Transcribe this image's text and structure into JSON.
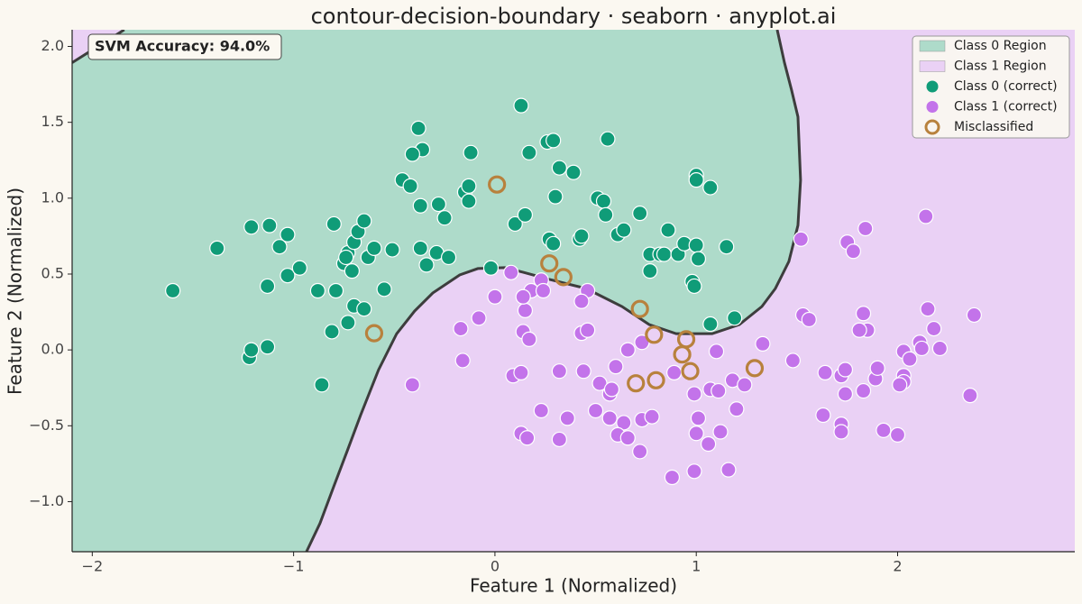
{
  "chart_data": {
    "type": "scatter",
    "title": "contour-decision-boundary · seaborn · anyplot.ai",
    "xlabel": "Feature 1 (Normalized)",
    "ylabel": "Feature 2 (Normalized)",
    "annotation": "SVM Accuracy: 94.0%",
    "xlim": [
      -2.1,
      2.88
    ],
    "ylim": [
      -1.33,
      2.11
    ],
    "xticks": [
      {
        "value": -2,
        "label": "−2"
      },
      {
        "value": -1,
        "label": "−1"
      },
      0,
      1,
      2
    ],
    "yticks": [
      {
        "value": -1.0,
        "label": "−1.0"
      },
      {
        "value": -0.5,
        "label": "−0.5"
      },
      {
        "value": 0.0,
        "label": "0.0"
      },
      {
        "value": 0.5,
        "label": "0.5"
      },
      {
        "value": 1.0,
        "label": "1.0"
      },
      {
        "value": 1.5,
        "label": "1.5"
      },
      {
        "value": 2.0,
        "label": "2.0"
      }
    ],
    "legend": "upper right",
    "regions": [
      {
        "name": "Class 0 Region",
        "color": "#aedbca"
      },
      {
        "name": "Class 1 Region",
        "color": "#ead1f5"
      }
    ],
    "boundary": {
      "color": "#3d3d3d",
      "x": [
        -0.936,
        -0.869,
        -0.802,
        -0.734,
        -0.667,
        -0.578,
        -0.488,
        -0.399,
        -0.309,
        -0.175,
        -0.085,
        0.049,
        0.139,
        0.273,
        0.452,
        0.631,
        0.766,
        0.9,
        1.079,
        1.214,
        1.326,
        1.393,
        1.46,
        1.505,
        1.518,
        1.505,
        1.473,
        1.438,
        1.402,
        null,
        -1.841,
        -2.1
      ],
      "y": [
        -1.33,
        -1.143,
        -0.905,
        -0.667,
        -0.429,
        -0.131,
        0.107,
        0.256,
        0.375,
        0.494,
        0.536,
        0.542,
        0.512,
        0.464,
        0.405,
        0.286,
        0.167,
        0.107,
        0.107,
        0.167,
        0.286,
        0.405,
        0.583,
        0.821,
        1.119,
        1.536,
        1.714,
        1.893,
        2.11,
        null,
        2.11,
        1.893
      ]
    },
    "series": [
      {
        "name": "Class 0 (correct)",
        "color": "#109c78",
        "marker": "filled",
        "x": [
          -1.6,
          -1.38,
          -1.21,
          -1.12,
          -1.03,
          -1.07,
          -1.03,
          -0.97,
          -1.13,
          -1.22,
          -1.21,
          -1.13,
          -0.86,
          -0.88,
          -0.79,
          -0.8,
          -0.75,
          -0.73,
          -0.71,
          -0.74,
          -0.7,
          -0.68,
          -0.65,
          -0.63,
          -0.6,
          -0.55,
          -0.51,
          -0.73,
          -0.7,
          -0.65,
          -0.81,
          -0.46,
          -0.42,
          -0.38,
          -0.36,
          -0.41,
          -0.37,
          -0.37,
          -0.34,
          -0.28,
          -0.29,
          -0.25,
          -0.23,
          -0.15,
          -0.13,
          -0.13,
          -0.12,
          -0.02,
          0.1,
          0.15,
          0.13,
          0.17,
          0.26,
          0.29,
          0.32,
          0.3,
          0.39,
          0.27,
          0.29,
          0.42,
          0.43,
          0.51,
          0.54,
          0.55,
          0.56,
          0.61,
          0.64,
          0.72,
          0.77,
          0.77,
          0.82,
          0.86,
          0.84,
          0.91,
          0.94,
          1.0,
          1.0,
          1.0,
          1.07,
          1.01,
          0.98,
          0.99,
          1.15,
          1.07,
          1.19
        ],
        "y": [
          0.39,
          0.67,
          0.81,
          0.82,
          0.76,
          0.68,
          0.49,
          0.54,
          0.42,
          -0.05,
          0.0,
          0.02,
          -0.23,
          0.39,
          0.39,
          0.83,
          0.57,
          0.64,
          0.52,
          0.61,
          0.71,
          0.78,
          0.85,
          0.61,
          0.67,
          0.4,
          0.66,
          0.18,
          0.29,
          0.27,
          0.12,
          1.12,
          1.08,
          1.46,
          1.32,
          1.29,
          0.95,
          0.67,
          0.56,
          0.96,
          0.64,
          0.87,
          0.61,
          1.04,
          1.08,
          0.98,
          1.3,
          0.54,
          0.83,
          0.89,
          1.61,
          1.3,
          1.37,
          1.38,
          1.2,
          1.01,
          1.17,
          0.73,
          0.7,
          0.73,
          0.75,
          1.0,
          0.98,
          0.89,
          1.39,
          0.76,
          0.79,
          0.9,
          0.63,
          0.52,
          0.63,
          0.79,
          0.63,
          0.63,
          0.7,
          0.69,
          1.15,
          1.12,
          1.07,
          0.6,
          0.45,
          0.42,
          0.68,
          0.17,
          0.21
        ]
      },
      {
        "name": "Class 1 (correct)",
        "color": "#c373ea",
        "marker": "filled",
        "x": [
          0.0,
          0.08,
          0.18,
          0.23,
          0.24,
          0.15,
          0.14,
          0.14,
          0.17,
          0.09,
          0.13,
          -0.08,
          -0.17,
          -0.16,
          -0.41,
          0.46,
          0.43,
          0.43,
          0.46,
          0.32,
          0.44,
          0.52,
          0.57,
          0.58,
          0.6,
          0.66,
          0.5,
          0.57,
          0.64,
          0.61,
          0.66,
          0.72,
          0.73,
          0.78,
          0.23,
          0.36,
          0.13,
          0.16,
          0.32,
          0.73,
          0.89,
          0.99,
          1.07,
          1.11,
          1.01,
          1.0,
          1.06,
          0.99,
          0.88,
          1.12,
          1.16,
          1.18,
          1.1,
          1.33,
          1.24,
          1.2,
          1.48,
          1.53,
          1.56,
          1.52,
          1.64,
          1.63,
          1.72,
          1.74,
          1.72,
          1.72,
          1.83,
          1.85,
          1.89,
          1.9,
          1.81,
          1.83,
          1.84,
          1.75,
          1.78,
          2.03,
          2.03,
          2.03,
          2.01,
          2.14,
          2.15,
          2.11,
          2.12,
          2.18,
          2.21,
          2.38,
          2.36,
          2.0,
          1.93,
          2.06,
          1.74
        ],
        "y": [
          0.35,
          0.51,
          0.39,
          0.46,
          0.39,
          0.26,
          0.35,
          0.12,
          0.07,
          -0.17,
          -0.15,
          0.21,
          0.14,
          -0.07,
          -0.23,
          0.39,
          0.32,
          0.11,
          0.13,
          -0.14,
          -0.14,
          -0.22,
          -0.29,
          -0.26,
          -0.11,
          0.0,
          -0.4,
          -0.45,
          -0.48,
          -0.56,
          -0.58,
          -0.67,
          -0.46,
          -0.44,
          -0.4,
          -0.45,
          -0.55,
          -0.58,
          -0.59,
          0.05,
          -0.15,
          -0.29,
          -0.26,
          -0.27,
          -0.45,
          -0.55,
          -0.62,
          -0.8,
          -0.84,
          -0.54,
          -0.79,
          -0.2,
          -0.01,
          0.04,
          -0.23,
          -0.39,
          -0.07,
          0.23,
          0.2,
          0.73,
          -0.15,
          -0.43,
          -0.17,
          -0.13,
          -0.49,
          -0.54,
          -0.27,
          0.13,
          -0.19,
          -0.12,
          0.13,
          0.24,
          0.8,
          0.71,
          0.65,
          -0.01,
          -0.17,
          -0.21,
          -0.23,
          0.88,
          0.27,
          0.05,
          0.01,
          0.14,
          0.01,
          0.23,
          -0.3,
          -0.56,
          -0.53,
          -0.06,
          -0.29
        ]
      },
      {
        "name": "Misclassified",
        "color": "#b8813d",
        "marker": "ring",
        "x": [
          0.01,
          -0.6,
          0.27,
          0.34,
          0.72,
          0.79,
          0.95,
          0.93,
          0.97,
          1.29,
          0.7,
          0.8
        ],
        "y": [
          1.09,
          0.11,
          0.57,
          0.48,
          0.27,
          0.1,
          0.07,
          -0.03,
          -0.14,
          -0.12,
          -0.22,
          -0.2
        ]
      }
    ]
  }
}
